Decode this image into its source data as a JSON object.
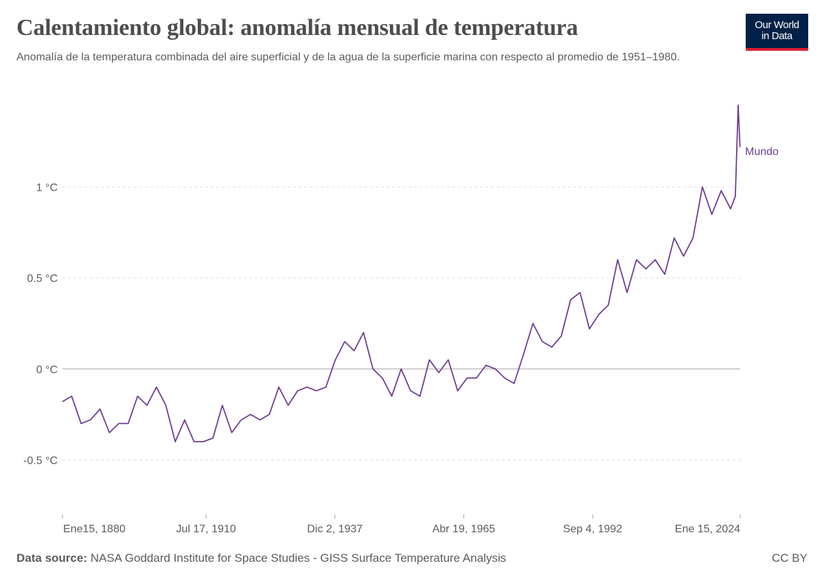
{
  "header": {
    "title": "Calentamiento global: anomalía mensual de temperatura",
    "subtitle": "Anomalía de la temperatura combinada del aire superficial y de la agua de la superficie marina con respecto al promedio de 1951–1980."
  },
  "logo": {
    "line1": "Our World",
    "line2": "in Data",
    "bg_color": "#002147",
    "accent_color": "#dc1e32"
  },
  "footer": {
    "source_label": "Data source:",
    "source_text": "NASA Goddard Institute for Space Studies - GISS Surface Temperature Analysis",
    "license": "CC BY"
  },
  "chart_data": {
    "type": "line",
    "title": "Calentamiento global: anomalía mensual de temperatura",
    "xlabel": "",
    "ylabel": "",
    "xlim": [
      "1880-01-15",
      "2024-01-15"
    ],
    "ylim": [
      -0.8,
      1.5
    ],
    "grid": true,
    "x_ticks": [
      "Ene15, 1880",
      "Jul 17, 1910",
      "Dic 2, 1937",
      "Abr 19, 1965",
      "Sep 4, 1992",
      "Ene 15, 2024"
    ],
    "x_tick_dates": [
      "1880-01-15",
      "1910-07-17",
      "1937-12-02",
      "1965-04-19",
      "1992-09-04",
      "2024-01-15"
    ],
    "y_ticks": [
      -0.5,
      0,
      0.5,
      1
    ],
    "y_tick_labels": [
      "-0.5 °C",
      "0 °C",
      "0.5 °C",
      "1 °C"
    ],
    "series": [
      {
        "name": "Mundo",
        "color": "#6d3e91",
        "x": [
          1880.0,
          1882.0,
          1884.0,
          1886.0,
          1888.0,
          1890.0,
          1892.0,
          1894.0,
          1896.0,
          1898.0,
          1900.0,
          1902.0,
          1904.0,
          1906.0,
          1908.0,
          1910.0,
          1912.0,
          1914.0,
          1916.0,
          1918.0,
          1920.0,
          1922.0,
          1924.0,
          1926.0,
          1928.0,
          1930.0,
          1932.0,
          1934.0,
          1936.0,
          1938.0,
          1940.0,
          1942.0,
          1944.0,
          1946.0,
          1948.0,
          1950.0,
          1952.0,
          1954.0,
          1956.0,
          1958.0,
          1960.0,
          1962.0,
          1964.0,
          1966.0,
          1968.0,
          1970.0,
          1972.0,
          1974.0,
          1976.0,
          1978.0,
          1980.0,
          1982.0,
          1984.0,
          1986.0,
          1988.0,
          1990.0,
          1992.0,
          1994.0,
          1996.0,
          1998.0,
          2000.0,
          2002.0,
          2004.0,
          2006.0,
          2008.0,
          2010.0,
          2012.0,
          2014.0,
          2016.0,
          2018.0,
          2020.0,
          2022.0,
          2023.0,
          2023.6,
          2024.0
        ],
        "y": [
          -0.18,
          -0.15,
          -0.3,
          -0.28,
          -0.22,
          -0.35,
          -0.3,
          -0.3,
          -0.15,
          -0.2,
          -0.1,
          -0.2,
          -0.4,
          -0.28,
          -0.4,
          -0.4,
          -0.38,
          -0.2,
          -0.35,
          -0.28,
          -0.25,
          -0.28,
          -0.25,
          -0.1,
          -0.2,
          -0.12,
          -0.1,
          -0.12,
          -0.1,
          0.05,
          0.15,
          0.1,
          0.2,
          0.0,
          -0.05,
          -0.15,
          0.0,
          -0.12,
          -0.15,
          0.05,
          -0.02,
          0.05,
          -0.12,
          -0.05,
          -0.05,
          0.02,
          0.0,
          -0.05,
          -0.08,
          0.08,
          0.25,
          0.15,
          0.12,
          0.18,
          0.38,
          0.42,
          0.22,
          0.3,
          0.35,
          0.6,
          0.42,
          0.6,
          0.55,
          0.6,
          0.52,
          0.72,
          0.62,
          0.72,
          1.0,
          0.85,
          0.98,
          0.88,
          0.95,
          1.45,
          1.22
        ]
      }
    ]
  }
}
